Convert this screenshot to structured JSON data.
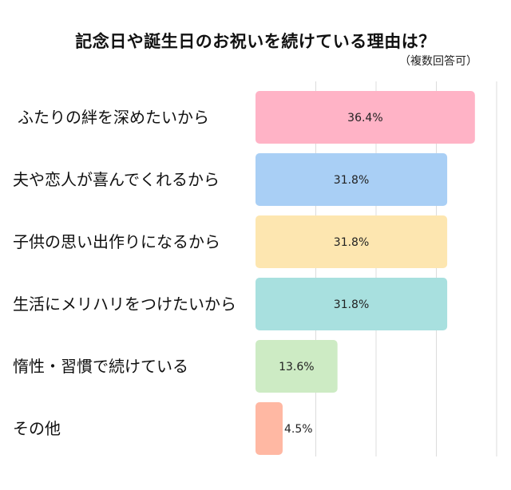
{
  "chart_data": {
    "type": "bar",
    "orientation": "horizontal",
    "title": "記念日や誕生日のお祝いを続けている理由は？",
    "subtitle": "（複数回答可）",
    "categories": [
      "ふたりの絆を深めたいから",
      "夫や恋人が喜んでくれるから",
      "子供の思い出作りになるから",
      "生活にメリハリをつけたいから",
      "惰性・習慣で続けている",
      "その他"
    ],
    "values": [
      36.4,
      31.8,
      31.8,
      31.8,
      13.6,
      4.5
    ],
    "value_labels": [
      "36.4%",
      "31.8%",
      "31.8%",
      "31.8%",
      "13.6%",
      "4.5%"
    ],
    "colors": [
      "#ffb3c6",
      "#a9cff5",
      "#fde6b0",
      "#a8e0df",
      "#cdebc4",
      "#ffb8a3"
    ],
    "xlim": [
      0,
      40
    ],
    "grid": true,
    "gridlines": [
      10,
      20,
      30,
      40
    ]
  }
}
